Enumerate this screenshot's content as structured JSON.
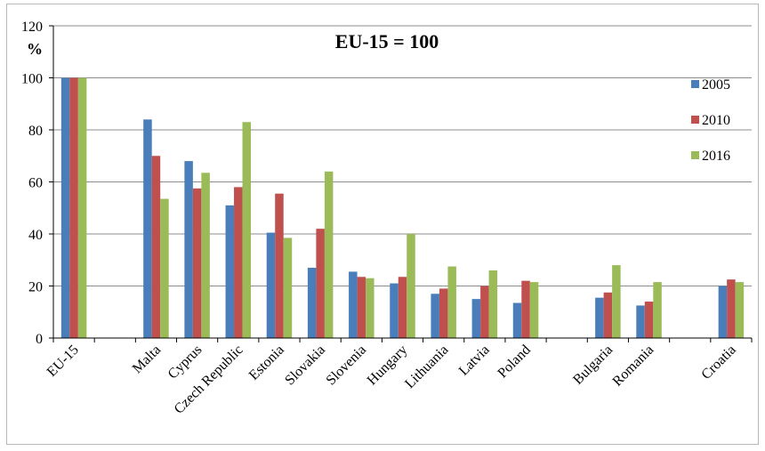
{
  "chart_data": {
    "type": "bar",
    "title": "EU-15 = 100",
    "ylabel": "%",
    "ylim": [
      0,
      120
    ],
    "yticks": [
      0,
      20,
      40,
      60,
      80,
      100,
      120
    ],
    "grid": true,
    "legend_position": "right",
    "categories": [
      "EU-15",
      "",
      "Malta",
      "Cyprus",
      "Czech Republic",
      "Estonia",
      "Slovakia",
      "Slovenia",
      "Hungary",
      "Lithuania",
      "Latvia",
      "Poland",
      "",
      "Bulgaria",
      "Romania",
      "",
      "Croatia"
    ],
    "series": [
      {
        "name": "2005",
        "color": "#4a7ebb",
        "values": [
          100,
          null,
          84,
          68,
          51,
          40.5,
          27,
          25.5,
          21,
          17,
          15,
          13.5,
          null,
          15.5,
          12.5,
          null,
          20
        ]
      },
      {
        "name": "2010",
        "color": "#c0504d",
        "values": [
          100,
          null,
          70,
          57.5,
          58,
          55.5,
          42,
          23.5,
          23.5,
          19,
          20,
          22,
          null,
          17.5,
          14,
          null,
          22.5
        ]
      },
      {
        "name": "2016",
        "color": "#9bbb59",
        "values": [
          100,
          null,
          53.5,
          63.5,
          83,
          38.5,
          64,
          23,
          40,
          27.5,
          26,
          21.5,
          null,
          28,
          21.5,
          null,
          21.5
        ]
      }
    ]
  }
}
